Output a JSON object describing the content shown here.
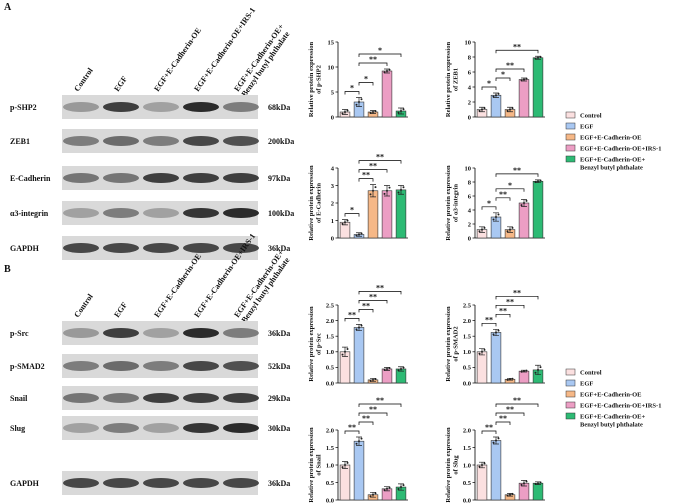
{
  "panels": [
    {
      "label": "A",
      "lanes": [
        [
          "Control"
        ],
        [
          "EGF"
        ],
        [
          "EGF+E-Cadherin-OE"
        ],
        [
          "EGF+E-Cadherin-OE+IRS-1"
        ],
        [
          "EGF+E-Cadherin-OE+",
          "Benzyl butyl phthalate"
        ]
      ],
      "proteins": [
        {
          "name": "p-SHP2",
          "size": "68kDa"
        },
        {
          "name": "ZEB1",
          "size": "200kDa"
        },
        {
          "name": "E-Cadherin",
          "size": "97kDa"
        },
        {
          "name": "α3-integrin",
          "size": "100kDa"
        },
        {
          "name": "GAPDH",
          "size": "36kDa"
        }
      ]
    },
    {
      "label": "B",
      "lanes": [
        [
          "Control"
        ],
        [
          "EGF"
        ],
        [
          "EGF+E-Cadherin-OE"
        ],
        [
          "EGF+E-Cadherin-OE+IRS-1"
        ],
        [
          "EGF+E-Cadherin-OE+",
          "Benzyl butyl phthalate"
        ]
      ],
      "proteins": [
        {
          "name": "p-Src",
          "size": "36kDa"
        },
        {
          "name": "p-SMAD2",
          "size": "52kDa"
        },
        {
          "name": "Snail",
          "size": "29kDa"
        },
        {
          "name": "Slug",
          "size": "30kDa"
        },
        {
          "name": "GAPDH",
          "size": "36kDa"
        }
      ]
    }
  ],
  "legend": [
    {
      "label": [
        "Control"
      ],
      "color": "#fbe0e0"
    },
    {
      "label": [
        "EGF"
      ],
      "color": "#a9c8f2"
    },
    {
      "label": [
        "EGF+E-Cadherin-OE"
      ],
      "color": "#f6b887"
    },
    {
      "label": [
        "EGF+E-Cadherin-OE+IRS-1"
      ],
      "color": "#ec9ec4"
    },
    {
      "label": [
        "EGF+E-Cadherin-OE+",
        "Benzyl butyl phthalate"
      ],
      "color": "#2dba74"
    }
  ],
  "chart_data": [
    {
      "type": "bar",
      "ylabel": [
        "Relative protein expression",
        "of p-SHP2"
      ],
      "ylim": [
        0,
        15
      ],
      "yticks": [
        0,
        5,
        10,
        15
      ],
      "values": [
        1,
        3,
        1,
        9.2,
        1.2
      ],
      "errors": [
        0.5,
        0.9,
        0.3,
        0.4,
        0.6
      ],
      "brackets": [
        {
          "pair": [
            0,
            1
          ],
          "label": "*"
        },
        {
          "pair": [
            1,
            2
          ],
          "label": "*"
        },
        {
          "pair": [
            1,
            3
          ],
          "label": "**"
        },
        {
          "pair": [
            1,
            4
          ],
          "label": "*"
        }
      ]
    },
    {
      "type": "bar",
      "ylabel": [
        "Relative protein expression",
        "of ZEB1"
      ],
      "ylim": [
        0,
        10
      ],
      "yticks": [
        0,
        2,
        4,
        6,
        8,
        10
      ],
      "values": [
        1,
        2.9,
        1,
        5,
        7.9
      ],
      "errors": [
        0.3,
        0.3,
        0.3,
        0.2,
        0.2
      ],
      "brackets": [
        {
          "pair": [
            0,
            1
          ],
          "label": "*"
        },
        {
          "pair": [
            1,
            2
          ],
          "label": "*"
        },
        {
          "pair": [
            1,
            3
          ],
          "label": "**"
        },
        {
          "pair": [
            1,
            4
          ],
          "label": "**"
        }
      ]
    },
    {
      "type": "bar",
      "ylabel": [
        "Relative protein expression",
        "of E-Cadherin"
      ],
      "ylim": [
        0,
        4
      ],
      "yticks": [
        0,
        1,
        2,
        3,
        4
      ],
      "values": [
        0.9,
        0.2,
        2.7,
        2.7,
        2.75
      ],
      "errors": [
        0.15,
        0.1,
        0.35,
        0.3,
        0.25
      ],
      "brackets": [
        {
          "pair": [
            0,
            1
          ],
          "label": "*"
        },
        {
          "pair": [
            1,
            2
          ],
          "label": "**"
        },
        {
          "pair": [
            1,
            3
          ],
          "label": "**"
        },
        {
          "pair": [
            1,
            4
          ],
          "label": "**"
        }
      ]
    },
    {
      "type": "bar",
      "ylabel": [
        "Relative protein expression",
        "of α3-integrin"
      ],
      "ylim": [
        0,
        10
      ],
      "yticks": [
        0,
        2,
        4,
        6,
        8,
        10
      ],
      "values": [
        1.2,
        3,
        1.2,
        5,
        8.1
      ],
      "errors": [
        0.4,
        0.6,
        0.4,
        0.5,
        0.2
      ],
      "brackets": [
        {
          "pair": [
            0,
            1
          ],
          "label": "*"
        },
        {
          "pair": [
            1,
            2
          ],
          "label": "**"
        },
        {
          "pair": [
            1,
            3
          ],
          "label": "*"
        },
        {
          "pair": [
            1,
            4
          ],
          "label": "**"
        }
      ]
    },
    {
      "type": "bar",
      "ylabel": [
        "Relative protein expression",
        "of p-Src"
      ],
      "ylim": [
        0,
        2.5
      ],
      "yticks": [
        {
          "value": 0,
          "label": "0.0"
        },
        {
          "value": 0.5,
          "label": "0.5"
        },
        {
          "value": 1,
          "label": "1.0"
        },
        {
          "value": 1.5,
          "label": "1.5"
        },
        {
          "value": 2,
          "label": "2.0"
        },
        {
          "value": 2.5,
          "label": "2.5"
        }
      ],
      "values": [
        1,
        1.78,
        0.1,
        0.45,
        0.45
      ],
      "errors": [
        0.15,
        0.1,
        0.05,
        0.05,
        0.07
      ],
      "brackets": [
        {
          "pair": [
            0,
            1
          ],
          "label": "**"
        },
        {
          "pair": [
            1,
            2
          ],
          "label": "**"
        },
        {
          "pair": [
            1,
            3
          ],
          "label": "**"
        },
        {
          "pair": [
            1,
            4
          ],
          "label": "**"
        }
      ]
    },
    {
      "type": "bar",
      "ylabel": [
        "Relative protein expression",
        "of p-SMAD2"
      ],
      "ylim": [
        0,
        2.5
      ],
      "yticks": [
        {
          "value": 0,
          "label": "0.0"
        },
        {
          "value": 0.5,
          "label": "0.5"
        },
        {
          "value": 1,
          "label": "1.0"
        },
        {
          "value": 1.5,
          "label": "1.5"
        },
        {
          "value": 2,
          "label": "2.0"
        },
        {
          "value": 2.5,
          "label": "2.5"
        }
      ],
      "values": [
        1,
        1.62,
        0.12,
        0.38,
        0.42
      ],
      "errors": [
        0.1,
        0.1,
        0.03,
        0.03,
        0.15
      ],
      "brackets": [
        {
          "pair": [
            0,
            1
          ],
          "label": "**"
        },
        {
          "pair": [
            1,
            2
          ],
          "label": "**"
        },
        {
          "pair": [
            1,
            3
          ],
          "label": "**"
        },
        {
          "pair": [
            1,
            4
          ],
          "label": "**"
        }
      ]
    },
    {
      "type": "bar",
      "ylabel": [
        "Relative protein expression",
        "of Snail"
      ],
      "ylim": [
        0,
        2
      ],
      "yticks": [
        {
          "value": 0,
          "label": "0.0"
        },
        {
          "value": 0.5,
          "label": "0.5"
        },
        {
          "value": 1,
          "label": "1.0"
        },
        {
          "value": 1.5,
          "label": "1.5"
        },
        {
          "value": 2,
          "label": "2.0"
        }
      ],
      "values": [
        1,
        1.68,
        0.15,
        0.32,
        0.37
      ],
      "errors": [
        0.1,
        0.12,
        0.07,
        0.06,
        0.09
      ],
      "brackets": [
        {
          "pair": [
            0,
            1
          ],
          "label": "**"
        },
        {
          "pair": [
            1,
            2
          ],
          "label": "**"
        },
        {
          "pair": [
            1,
            3
          ],
          "label": "**"
        },
        {
          "pair": [
            1,
            4
          ],
          "label": "**"
        }
      ]
    },
    {
      "type": "bar",
      "ylabel": [
        "Relative protein expression",
        "of Slug"
      ],
      "ylim": [
        0,
        2
      ],
      "yticks": [
        {
          "value": 0,
          "label": "0.0"
        },
        {
          "value": 0.5,
          "label": "0.5"
        },
        {
          "value": 1,
          "label": "1.0"
        },
        {
          "value": 1.5,
          "label": "1.5"
        },
        {
          "value": 2,
          "label": "2.0"
        }
      ],
      "values": [
        1,
        1.7,
        0.15,
        0.48,
        0.48
      ],
      "errors": [
        0.08,
        0.1,
        0.04,
        0.08,
        0.04
      ],
      "brackets": [
        {
          "pair": [
            0,
            1
          ],
          "label": "**"
        },
        {
          "pair": [
            1,
            2
          ],
          "label": "**"
        },
        {
          "pair": [
            1,
            3
          ],
          "label": "**"
        },
        {
          "pair": [
            1,
            4
          ],
          "label": "**"
        }
      ]
    }
  ]
}
